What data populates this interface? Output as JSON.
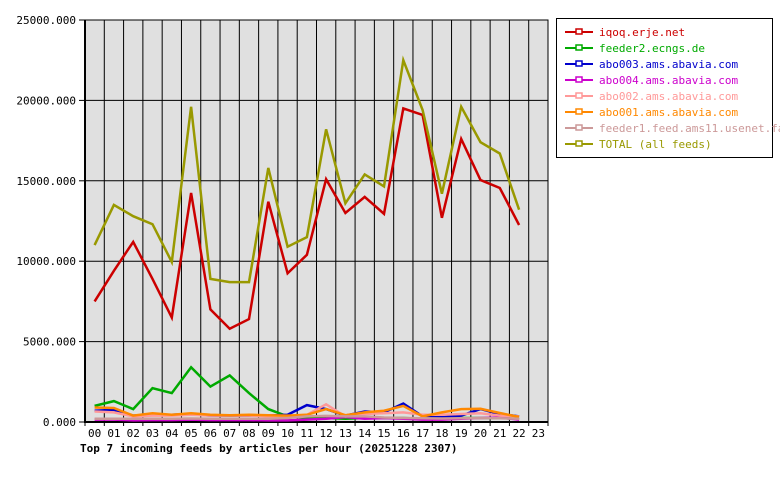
{
  "chart_data": {
    "type": "line",
    "title": "Top 7 incoming feeds by articles per hour (20251228 2307)",
    "x_labels": [
      "00",
      "01",
      "02",
      "03",
      "04",
      "05",
      "06",
      "07",
      "08",
      "09",
      "10",
      "11",
      "12",
      "13",
      "14",
      "15",
      "16",
      "17",
      "18",
      "19",
      "20",
      "21",
      "22",
      "23"
    ],
    "y_tick_labels": [
      "25000.000",
      "20000.000",
      "15000.000",
      "10000.000",
      "5000.000",
      "0.000"
    ],
    "ylim": [
      0,
      25000
    ],
    "y_tick_step": 5000,
    "grid": "on",
    "plot_background": "#e0e0e0",
    "grid_color": "#000000",
    "legend_position": "outside-top-right",
    "series": [
      {
        "name": "iqoq.erje.net",
        "color": "#cc0000",
        "values": [
          7500,
          9400,
          11200,
          8900,
          6500,
          14250,
          7000,
          5800,
          6400,
          13700,
          9250,
          10400,
          15100,
          13000,
          14000,
          12950,
          19500,
          19100,
          12700,
          17600,
          15050,
          14550,
          12250
        ]
      },
      {
        "name": "feeder2.ecngs.de",
        "color": "#00aa00",
        "values": [
          1000,
          1300,
          800,
          2100,
          1800,
          3400,
          2200,
          2900,
          1800,
          800,
          350,
          250,
          250,
          200,
          250,
          250,
          250,
          200,
          200,
          250,
          250,
          250,
          200
        ]
      },
      {
        "name": "abo003.ams.abavia.com",
        "color": "#0000cc",
        "values": [
          700,
          750,
          400,
          450,
          450,
          500,
          400,
          400,
          400,
          400,
          450,
          1050,
          800,
          400,
          650,
          600,
          1150,
          350,
          300,
          400,
          800,
          500,
          350
        ]
      },
      {
        "name": "abo004.ams.abavia.com",
        "color": "#cc00cc",
        "values": [
          150,
          150,
          100,
          120,
          120,
          150,
          120,
          120,
          120,
          100,
          100,
          150,
          200,
          310,
          200,
          250,
          200,
          150,
          150,
          200,
          250,
          280,
          150
        ]
      },
      {
        "name": "abo002.ams.abavia.com",
        "color": "#ff9999",
        "values": [
          650,
          600,
          350,
          400,
          400,
          450,
          400,
          400,
          400,
          350,
          350,
          450,
          1100,
          350,
          500,
          550,
          600,
          450,
          450,
          500,
          550,
          400,
          350
        ]
      },
      {
        "name": "abo001.ams.abavia.com",
        "color": "#ff8800",
        "values": [
          900,
          870,
          400,
          550,
          450,
          550,
          450,
          420,
          450,
          420,
          400,
          450,
          800,
          420,
          600,
          700,
          1000,
          350,
          600,
          800,
          820,
          560,
          310
        ]
      },
      {
        "name": "feeder1.feed.ams11.usenet.farm",
        "color": "#cc9999",
        "values": [
          200,
          200,
          200,
          200,
          200,
          220,
          200,
          200,
          200,
          200,
          250,
          350,
          380,
          350,
          350,
          280,
          250,
          230,
          220,
          230,
          250,
          230,
          200
        ]
      },
      {
        "name": "TOTAL (all feeds)",
        "color": "#999900",
        "values": [
          11000,
          13500,
          12800,
          12300,
          9950,
          19600,
          8900,
          8700,
          8700,
          15800,
          10900,
          11500,
          18200,
          13600,
          15400,
          14650,
          22500,
          19400,
          14200,
          19600,
          17400,
          16700,
          13200
        ]
      }
    ]
  }
}
